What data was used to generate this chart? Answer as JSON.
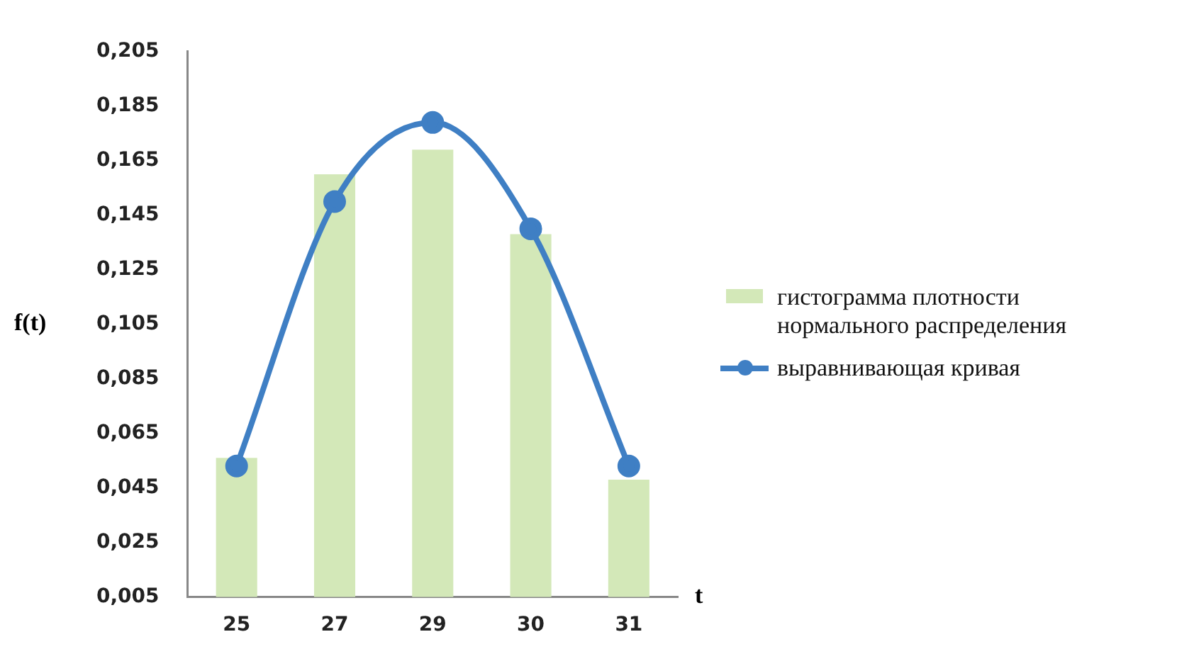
{
  "chart_data": {
    "type": "bar",
    "categories": [
      "25",
      "27",
      "29",
      "30",
      "31"
    ],
    "xlabel": "t",
    "ylabel": "f(t)",
    "series": [
      {
        "name": "гистограмма плотности нормального распределения",
        "color": "#d3e8b8",
        "values": [
          0.056,
          0.16,
          0.169,
          0.138,
          0.048
        ]
      },
      {
        "name": "выравнивающая кривая",
        "type": "line",
        "color": "#3f7fc4",
        "marker": "circle",
        "values": [
          0.053,
          0.15,
          0.179,
          0.14,
          0.053
        ]
      }
    ],
    "ylim": [
      0.005,
      0.205
    ],
    "yticks": [
      {
        "value": 0.005,
        "label": "0,005"
      },
      {
        "value": 0.025,
        "label": "0,025"
      },
      {
        "value": 0.045,
        "label": "0,045"
      },
      {
        "value": 0.065,
        "label": "0,065"
      },
      {
        "value": 0.085,
        "label": "0,085"
      },
      {
        "value": 0.105,
        "label": "0,105"
      },
      {
        "value": 0.125,
        "label": "0,125"
      },
      {
        "value": 0.145,
        "label": "0,145"
      },
      {
        "value": 0.165,
        "label": "0,165"
      },
      {
        "value": 0.185,
        "label": "0,185"
      },
      {
        "value": 0.205,
        "label": "0,205"
      }
    ],
    "grid": false,
    "legend": "right"
  }
}
